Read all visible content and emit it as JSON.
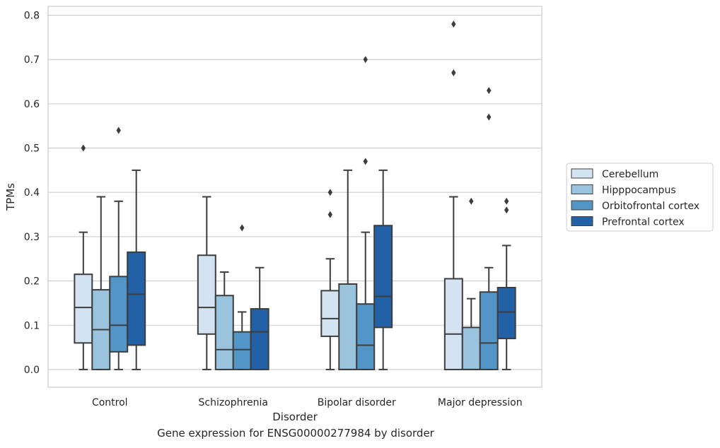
{
  "caption": "Gene expression for ENSG00000277984 by disorder",
  "chart_data": {
    "type": "boxplot",
    "xlabel": "Disorder",
    "ylabel": "TPMs",
    "ylim": [
      -0.04,
      0.82
    ],
    "yticks": [
      "0.0",
      "0.1",
      "0.2",
      "0.3",
      "0.4",
      "0.5",
      "0.6",
      "0.7",
      "0.8"
    ],
    "grid": true,
    "legend_placement": "right",
    "categories": [
      "Control",
      "Schizophrenia",
      "Bipolar disorder",
      "Major depression"
    ],
    "series": [
      {
        "name": "Cerebellum",
        "color": "#d3e3f2",
        "boxes": [
          {
            "whislo": 0.0,
            "q1": 0.06,
            "med": 0.14,
            "q3": 0.215,
            "whishi": 0.31,
            "fliers": [
              0.5
            ]
          },
          {
            "whislo": 0.0,
            "q1": 0.08,
            "med": 0.14,
            "q3": 0.258,
            "whishi": 0.39,
            "fliers": []
          },
          {
            "whislo": 0.0,
            "q1": 0.075,
            "med": 0.115,
            "q3": 0.178,
            "whishi": 0.25,
            "fliers": [
              0.35,
              0.4
            ]
          },
          {
            "whislo": 0.0,
            "q1": 0.0,
            "med": 0.08,
            "q3": 0.205,
            "whishi": 0.39,
            "fliers": [
              0.67,
              0.78
            ]
          }
        ]
      },
      {
        "name": "Hipppocampus",
        "color": "#9ac4de",
        "boxes": [
          {
            "whislo": 0.0,
            "q1": 0.0,
            "med": 0.09,
            "q3": 0.18,
            "whishi": 0.39,
            "fliers": []
          },
          {
            "whislo": 0.0,
            "q1": 0.0,
            "med": 0.045,
            "q3": 0.167,
            "whishi": 0.22,
            "fliers": []
          },
          {
            "whislo": 0.0,
            "q1": 0.0,
            "med": 0.0,
            "q3": 0.193,
            "whishi": 0.45,
            "fliers": []
          },
          {
            "whislo": 0.0,
            "q1": 0.0,
            "med": 0.0,
            "q3": 0.095,
            "whishi": 0.16,
            "fliers": [
              0.38
            ]
          }
        ]
      },
      {
        "name": "Orbitofrontal cortex",
        "color": "#5495c8",
        "boxes": [
          {
            "whislo": 0.0,
            "q1": 0.04,
            "med": 0.1,
            "q3": 0.21,
            "whishi": 0.38,
            "fliers": [
              0.54
            ]
          },
          {
            "whislo": 0.0,
            "q1": 0.0,
            "med": 0.045,
            "q3": 0.085,
            "whishi": 0.13,
            "fliers": [
              0.32
            ]
          },
          {
            "whislo": 0.0,
            "q1": 0.0,
            "med": 0.055,
            "q3": 0.148,
            "whishi": 0.31,
            "fliers": [
              0.47,
              0.7
            ]
          },
          {
            "whislo": 0.0,
            "q1": 0.0,
            "med": 0.06,
            "q3": 0.175,
            "whishi": 0.23,
            "fliers": [
              0.57,
              0.63
            ]
          }
        ]
      },
      {
        "name": "Prefrontal cortex",
        "color": "#2361a6",
        "boxes": [
          {
            "whislo": 0.0,
            "q1": 0.055,
            "med": 0.17,
            "q3": 0.265,
            "whishi": 0.45,
            "fliers": []
          },
          {
            "whislo": 0.0,
            "q1": 0.0,
            "med": 0.085,
            "q3": 0.137,
            "whishi": 0.23,
            "fliers": []
          },
          {
            "whislo": 0.0,
            "q1": 0.095,
            "med": 0.165,
            "q3": 0.325,
            "whishi": 0.45,
            "fliers": []
          },
          {
            "whislo": 0.0,
            "q1": 0.07,
            "med": 0.13,
            "q3": 0.185,
            "whishi": 0.28,
            "fliers": [
              0.36,
              0.38
            ]
          }
        ]
      }
    ]
  }
}
